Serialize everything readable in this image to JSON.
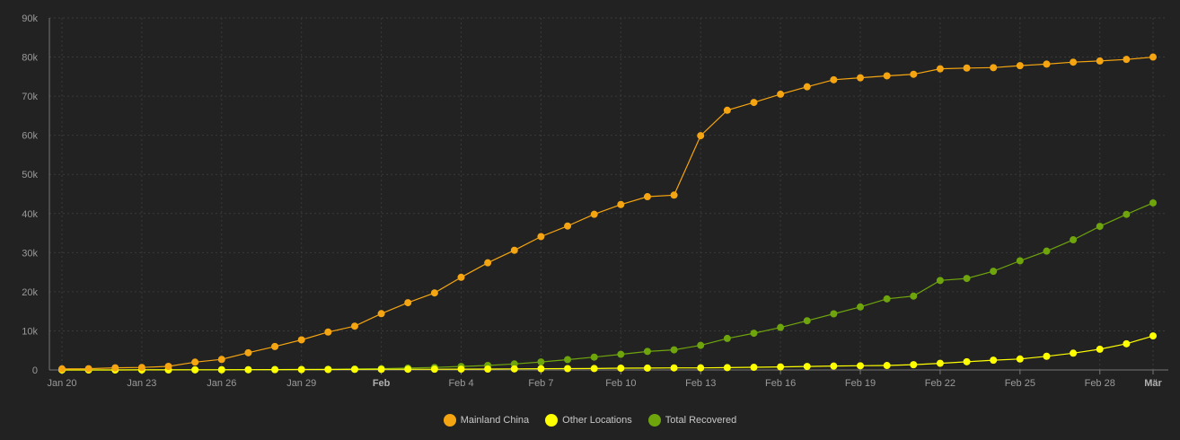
{
  "chart_data": {
    "type": "line",
    "title": "",
    "xlabel": "",
    "ylabel": "",
    "ylim": [
      0,
      90000
    ],
    "y_ticks": [
      0,
      10000,
      20000,
      30000,
      40000,
      50000,
      60000,
      70000,
      80000,
      90000
    ],
    "y_tick_labels": [
      "0",
      "10k",
      "20k",
      "30k",
      "40k",
      "50k",
      "60k",
      "70k",
      "80k",
      "90k"
    ],
    "x_tick_labels": [
      {
        "label": "Jan 20",
        "index": 0,
        "bold": false
      },
      {
        "label": "Jan 23",
        "index": 3,
        "bold": false
      },
      {
        "label": "Jan 26",
        "index": 6,
        "bold": false
      },
      {
        "label": "Jan 29",
        "index": 9,
        "bold": false
      },
      {
        "label": "Feb",
        "index": 12,
        "bold": true
      },
      {
        "label": "Feb 4",
        "index": 15,
        "bold": false
      },
      {
        "label": "Feb 7",
        "index": 18,
        "bold": false
      },
      {
        "label": "Feb 10",
        "index": 21,
        "bold": false
      },
      {
        "label": "Feb 13",
        "index": 24,
        "bold": false
      },
      {
        "label": "Feb 16",
        "index": 27,
        "bold": false
      },
      {
        "label": "Feb 19",
        "index": 30,
        "bold": false
      },
      {
        "label": "Feb 22",
        "index": 33,
        "bold": false
      },
      {
        "label": "Feb 25",
        "index": 36,
        "bold": false
      },
      {
        "label": "Feb 28",
        "index": 39,
        "bold": false
      },
      {
        "label": "Mär",
        "index": 41,
        "bold": true
      }
    ],
    "x": [
      "Jan 20",
      "Jan 21",
      "Jan 22",
      "Jan 23",
      "Jan 24",
      "Jan 25",
      "Jan 26",
      "Jan 27",
      "Jan 28",
      "Jan 29",
      "Jan 30",
      "Jan 31",
      "Feb 1",
      "Feb 2",
      "Feb 3",
      "Feb 4",
      "Feb 5",
      "Feb 6",
      "Feb 7",
      "Feb 8",
      "Feb 9",
      "Feb 10",
      "Feb 11",
      "Feb 12",
      "Feb 13",
      "Feb 14",
      "Feb 15",
      "Feb 16",
      "Feb 17",
      "Feb 18",
      "Feb 19",
      "Feb 20",
      "Feb 21",
      "Feb 22",
      "Feb 23",
      "Feb 24",
      "Feb 25",
      "Feb 26",
      "Feb 27",
      "Feb 28",
      "Feb 29",
      "Mar 1"
    ],
    "grid": true,
    "legend_position": "bottom-center",
    "series": [
      {
        "name": "Mainland China",
        "color": "#F5A511",
        "values": [
          278,
          326,
          547,
          639,
          916,
          2000,
          2700,
          4400,
          6000,
          7700,
          9700,
          11200,
          14400,
          17200,
          19700,
          23700,
          27400,
          30600,
          34100,
          36800,
          39800,
          42300,
          44300,
          44700,
          59900,
          66400,
          68400,
          70500,
          72400,
          74200,
          74700,
          75200,
          75600,
          77000,
          77200,
          77300,
          77800,
          78200,
          78700,
          79000,
          79400,
          80000
        ]
      },
      {
        "name": "Other Locations",
        "color": "#FFFF00",
        "values": [
          4,
          6,
          8,
          14,
          25,
          40,
          57,
          64,
          87,
          105,
          118,
          153,
          173,
          183,
          188,
          212,
          227,
          265,
          317,
          343,
          361,
          457,
          476,
          523,
          538,
          595,
          685,
          780,
          896,
          999,
          1076,
          1143,
          1350,
          1700,
          2100,
          2500,
          2800,
          3500,
          4300,
          5300,
          6700,
          8700
        ]
      },
      {
        "name": "Total Recovered",
        "color": "#6EA40C",
        "values": [
          0,
          0,
          0,
          28,
          30,
          36,
          49,
          60,
          103,
          124,
          171,
          243,
          328,
          475,
          632,
          892,
          1153,
          1540,
          2050,
          2649,
          3281,
          3996,
          4740,
          5150,
          6295,
          8058,
          9395,
          10865,
          12583,
          14352,
          16121,
          18177,
          18890,
          22886,
          23394,
          25227,
          27905,
          30384,
          33277,
          36711,
          39782,
          42716
        ]
      }
    ]
  }
}
